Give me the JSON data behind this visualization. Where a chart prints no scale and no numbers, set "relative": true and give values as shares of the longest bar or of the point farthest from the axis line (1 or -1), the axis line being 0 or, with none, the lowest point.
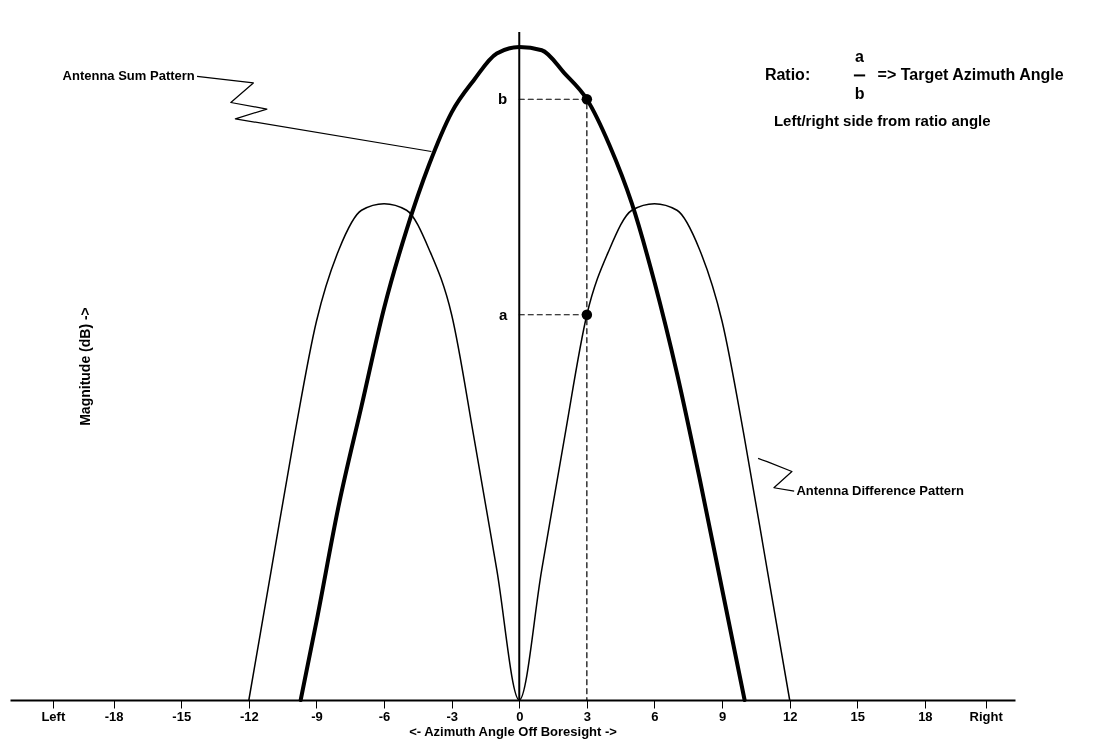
{
  "chart_data": {
    "type": "line",
    "relative": true,
    "xlabel": "<- Azimuth Angle Off Boresight ->",
    "ylabel": "Magnitude (dB) ->",
    "xlim": [
      -22.6,
      22
    ],
    "xticks": [
      {
        "value": -20.7,
        "label": "Left"
      },
      -18,
      -15,
      -12,
      -9,
      -6,
      -3,
      0,
      3,
      6,
      9,
      12,
      15,
      18,
      {
        "value": 20.7,
        "label": "Right"
      }
    ],
    "grid": false,
    "marker": "none",
    "series": [
      {
        "color": "#000000",
        "x": [
          -9.7,
          -9,
          -8,
          -7,
          -6,
          -5,
          -4,
          -3,
          -2,
          -1,
          0,
          1,
          2,
          3,
          4,
          5,
          6,
          7,
          8,
          9,
          10
        ],
        "values": [
          0,
          0.12,
          0.3,
          0.45,
          0.6,
          0.72,
          0.82,
          0.9,
          0.95,
          0.99,
          1.0,
          0.995,
          0.96,
          0.92,
          0.85,
          0.76,
          0.64,
          0.5,
          0.34,
          0.17,
          0
        ]
      },
      {
        "color": "#000000",
        "x": [
          -12,
          -11,
          -10,
          -9,
          -8,
          -7,
          -6,
          -5,
          -4,
          -3,
          -2,
          -1,
          0,
          1,
          2,
          3,
          4,
          5,
          6,
          7,
          8,
          9,
          10,
          11,
          12
        ],
        "values": [
          0,
          0.2,
          0.4,
          0.58,
          0.69,
          0.75,
          0.76,
          0.75,
          0.69,
          0.59,
          0.4,
          0.2,
          0,
          0.2,
          0.4,
          0.59,
          0.69,
          0.75,
          0.76,
          0.75,
          0.69,
          0.58,
          0.4,
          0.2,
          0
        ]
      },
      {
        "color": "#000000",
        "line_style": "dashed",
        "x": [
          0,
          3,
          3
        ],
        "values": [
          0.92,
          0.92,
          0
        ]
      },
      {
        "color": "#000000",
        "line_style": "dashed",
        "x": [
          0,
          3
        ],
        "values": [
          0.59,
          0.59
        ]
      },
      {
        "type": "scatter",
        "color": "#000000",
        "marker": "circle",
        "x": [
          3,
          3
        ],
        "values": [
          0.92,
          0.59
        ]
      }
    ],
    "annotations": [
      "Antenna Sum Pattern",
      "Antenna Difference Pattern",
      "Ratio:",
      "a",
      "b",
      "=> Target Azimuth Angle",
      "Left/right side from ratio angle",
      {
        "text": "b",
        "x": 0,
        "y": 0.92
      },
      {
        "text": "a",
        "x": 0,
        "y": 0.59
      }
    ]
  }
}
